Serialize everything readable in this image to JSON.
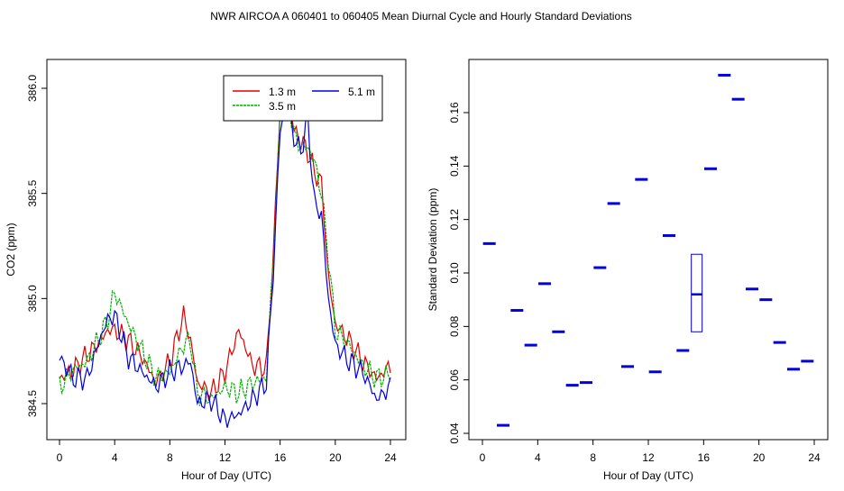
{
  "title": "NWR   AIRCOA A   060401 to 060405   Mean Diurnal Cycle and Hourly Standard Deviations",
  "colors": {
    "series_1_3": "#e00000",
    "series_3_5": "#00b000",
    "series_5_1": "#0000e0",
    "std": "#0000e0"
  },
  "chart_data": [
    {
      "type": "line",
      "xlabel": "Hour of Day (UTC)",
      "ylabel": "CO2 (ppm)",
      "xlim": [
        0,
        24
      ],
      "ylim": [
        384.4,
        386.05
      ],
      "xticks": [
        "0",
        "4",
        "8",
        "12",
        "16",
        "20",
        "24"
      ],
      "yticks": [
        "384.5",
        "385.0",
        "385.5",
        "386.0"
      ],
      "legend_position": "top-right",
      "legend": [
        "1.3 m",
        "3.5 m",
        "5.1 m"
      ],
      "keypoints_x": [
        0,
        1,
        2,
        3,
        3.5,
        4,
        5,
        6,
        7,
        8,
        9,
        9.5,
        10,
        11,
        12,
        13,
        14,
        15,
        15.5,
        16,
        16.5,
        17,
        17.5,
        18,
        18.5,
        19,
        19.5,
        20,
        21,
        22,
        23,
        24
      ],
      "series": [
        {
          "name": "1.3 m",
          "values": [
            384.62,
            384.66,
            384.73,
            384.8,
            384.85,
            384.85,
            384.8,
            384.72,
            384.6,
            384.7,
            384.92,
            384.8,
            384.6,
            384.55,
            384.65,
            384.85,
            384.68,
            384.67,
            385.2,
            385.92,
            386.05,
            385.8,
            385.75,
            385.7,
            385.6,
            385.55,
            385.1,
            384.88,
            384.8,
            384.7,
            384.62,
            384.68
          ]
        },
        {
          "name": "3.5 m",
          "values": [
            384.58,
            384.66,
            384.7,
            384.83,
            384.9,
            385.03,
            384.88,
            384.75,
            384.62,
            384.65,
            384.78,
            384.8,
            384.55,
            384.52,
            384.58,
            384.55,
            384.6,
            384.62,
            385.2,
            385.85,
            386.0,
            385.78,
            385.72,
            385.72,
            385.65,
            385.5,
            385.2,
            384.85,
            384.78,
            384.68,
            384.62,
            384.64
          ]
        },
        {
          "name": "5.1 m",
          "values": [
            384.72,
            384.62,
            384.62,
            384.82,
            384.9,
            384.92,
            384.72,
            384.65,
            384.58,
            384.65,
            384.68,
            384.7,
            384.5,
            384.52,
            384.42,
            384.45,
            384.52,
            384.6,
            385.12,
            385.8,
            385.95,
            385.76,
            385.7,
            385.85,
            385.45,
            385.4,
            385.0,
            384.78,
            384.7,
            384.65,
            384.52,
            384.58
          ]
        }
      ]
    },
    {
      "type": "scatter",
      "xlabel": "Hour of Day (UTC)",
      "ylabel": "Standard Deviation (ppm)",
      "xlim": [
        0,
        24
      ],
      "ylim": [
        0.036,
        0.18
      ],
      "xticks": [
        "0",
        "4",
        "8",
        "12",
        "16",
        "20",
        "24"
      ],
      "yticks": [
        "0.04",
        "0.06",
        "0.08",
        "0.10",
        "0.12",
        "0.14",
        "0.16"
      ],
      "x": [
        0.5,
        1.5,
        2.5,
        3.5,
        4.5,
        5.5,
        6.5,
        7.5,
        8.5,
        9.5,
        10.5,
        11.5,
        12.5,
        13.5,
        14.5,
        16.5,
        17.5,
        18.5,
        19.5,
        20.5,
        21.5,
        22.5,
        23.5
      ],
      "values": [
        0.111,
        0.043,
        0.086,
        0.073,
        0.096,
        0.078,
        0.058,
        0.059,
        0.102,
        0.126,
        0.065,
        0.135,
        0.063,
        0.114,
        0.071,
        0.139,
        0.174,
        0.165,
        0.094,
        0.09,
        0.074,
        0.064,
        0.067
      ],
      "box": {
        "x": 15.5,
        "min": 0.078,
        "median": 0.092,
        "max": 0.107
      }
    }
  ]
}
